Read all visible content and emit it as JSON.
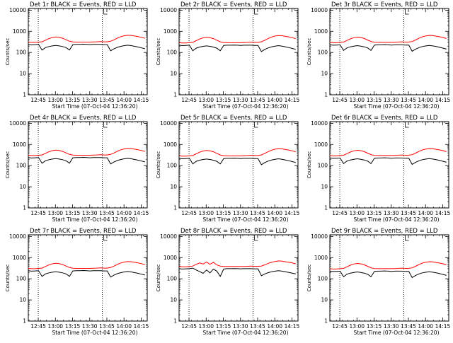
{
  "colors": {
    "events": "#000000",
    "lld": "#ff0000",
    "background": "#ffffff"
  },
  "shared": {
    "xlabel": "Start Time (07-Oct-04 12:36:20)",
    "ylabel": "Counts/sec",
    "xtick_labels": [
      "12:45",
      "13:00",
      "13:15",
      "13:30",
      "13:45",
      "14:00",
      "14:15"
    ],
    "ytick_labels": [
      "1",
      "10",
      "100",
      "1000",
      "10000"
    ],
    "xlim_min": [
      0,
      104
    ],
    "ylim": [
      1,
      12000
    ],
    "y_scale": "log"
  },
  "chart_data": [
    {
      "type": "line",
      "title": "Det 1r BLACK = Events, RED = LLD",
      "x": [
        0,
        3,
        6,
        9,
        12,
        15,
        18,
        21,
        24,
        27,
        30,
        33,
        36,
        39,
        42,
        45,
        48,
        51,
        54,
        57,
        60,
        63,
        66,
        69,
        72,
        75,
        78,
        81,
        84,
        87,
        90,
        93,
        96,
        99,
        102
      ],
      "series": [
        {
          "color": "black",
          "values": [
            240,
            230,
            235,
            240,
            130,
            170,
            190,
            205,
            215,
            205,
            190,
            170,
            130,
            235,
            240,
            240,
            245,
            240,
            235,
            240,
            240,
            240,
            235,
            235,
            120,
            150,
            175,
            195,
            210,
            220,
            210,
            195,
            180,
            165,
            150
          ]
        },
        {
          "color": "red",
          "values": [
            310,
            300,
            300,
            310,
            320,
            380,
            450,
            510,
            540,
            520,
            470,
            400,
            340,
            315,
            310,
            310,
            310,
            310,
            310,
            315,
            320,
            330,
            320,
            320,
            340,
            400,
            480,
            560,
            620,
            650,
            640,
            600,
            560,
            520,
            470
          ]
        }
      ],
      "vlines_minutes": [
        8.7,
        64.7
      ],
      "marker_minutes": 66
    },
    {
      "type": "line",
      "title": "Det 2r BLACK = Events, RED = LLD",
      "x": [
        0,
        3,
        6,
        9,
        12,
        15,
        18,
        21,
        24,
        27,
        30,
        33,
        36,
        39,
        42,
        45,
        48,
        51,
        54,
        57,
        60,
        63,
        66,
        69,
        72,
        75,
        78,
        81,
        84,
        87,
        90,
        93,
        96,
        99,
        102
      ],
      "series": [
        {
          "color": "black",
          "values": [
            220,
            210,
            215,
            220,
            120,
            160,
            180,
            195,
            205,
            195,
            180,
            160,
            120,
            215,
            220,
            220,
            225,
            220,
            215,
            220,
            220,
            220,
            215,
            215,
            110,
            140,
            165,
            185,
            200,
            210,
            200,
            185,
            170,
            155,
            140
          ]
        },
        {
          "color": "red",
          "values": [
            290,
            280,
            280,
            290,
            300,
            360,
            430,
            490,
            520,
            500,
            450,
            380,
            320,
            295,
            290,
            290,
            290,
            290,
            290,
            295,
            300,
            310,
            300,
            300,
            320,
            380,
            460,
            540,
            600,
            630,
            620,
            580,
            540,
            500,
            450
          ]
        }
      ],
      "vlines_minutes": [
        8.7,
        64.7
      ],
      "marker_minutes": 66
    },
    {
      "type": "line",
      "title": "Det 3r BLACK = Events, RED = LLD",
      "x": [
        0,
        3,
        6,
        9,
        12,
        15,
        18,
        21,
        24,
        27,
        30,
        33,
        36,
        39,
        42,
        45,
        48,
        51,
        54,
        57,
        60,
        63,
        66,
        69,
        72,
        75,
        78,
        81,
        84,
        87,
        90,
        93,
        96,
        99,
        102
      ],
      "series": [
        {
          "color": "black",
          "values": [
            230,
            220,
            225,
            230,
            125,
            165,
            185,
            200,
            210,
            200,
            185,
            165,
            125,
            225,
            230,
            230,
            235,
            230,
            225,
            230,
            230,
            230,
            225,
            225,
            115,
            145,
            170,
            190,
            205,
            215,
            205,
            190,
            175,
            160,
            145
          ]
        },
        {
          "color": "red",
          "values": [
            300,
            290,
            290,
            300,
            310,
            370,
            440,
            500,
            530,
            510,
            460,
            390,
            330,
            305,
            300,
            300,
            300,
            300,
            300,
            305,
            310,
            320,
            310,
            310,
            330,
            390,
            470,
            550,
            610,
            640,
            630,
            590,
            550,
            510,
            460
          ]
        }
      ],
      "vlines_minutes": [
        8.7,
        64.7
      ],
      "marker_minutes": 66
    },
    {
      "type": "line",
      "title": "Det 4r BLACK = Events, RED = LLD",
      "x": [
        0,
        3,
        6,
        9,
        12,
        15,
        18,
        21,
        24,
        27,
        30,
        33,
        36,
        39,
        42,
        45,
        48,
        51,
        54,
        57,
        60,
        63,
        66,
        69,
        72,
        75,
        78,
        81,
        84,
        87,
        90,
        93,
        96,
        99,
        102
      ],
      "series": [
        {
          "color": "black",
          "values": [
            240,
            230,
            235,
            240,
            130,
            170,
            190,
            205,
            215,
            205,
            190,
            170,
            130,
            235,
            240,
            240,
            245,
            240,
            235,
            240,
            240,
            240,
            235,
            235,
            120,
            150,
            175,
            195,
            210,
            220,
            210,
            195,
            180,
            165,
            150
          ]
        },
        {
          "color": "red",
          "values": [
            310,
            300,
            300,
            310,
            320,
            380,
            450,
            510,
            540,
            520,
            470,
            400,
            340,
            315,
            310,
            310,
            310,
            310,
            310,
            315,
            320,
            330,
            320,
            320,
            340,
            400,
            480,
            560,
            620,
            650,
            640,
            600,
            560,
            520,
            470
          ]
        }
      ],
      "vlines_minutes": [
        8.7,
        64.7
      ],
      "marker_minutes": 66
    },
    {
      "type": "line",
      "title": "Det 5r BLACK = Events, RED = LLD",
      "x": [
        0,
        3,
        6,
        9,
        12,
        15,
        18,
        21,
        24,
        27,
        30,
        33,
        36,
        39,
        42,
        45,
        48,
        51,
        54,
        57,
        60,
        63,
        66,
        69,
        72,
        75,
        78,
        81,
        84,
        87,
        90,
        93,
        96,
        99,
        102
      ],
      "series": [
        {
          "color": "black",
          "values": [
            220,
            210,
            215,
            220,
            120,
            160,
            180,
            195,
            205,
            195,
            180,
            160,
            120,
            215,
            220,
            220,
            225,
            220,
            215,
            220,
            220,
            220,
            215,
            215,
            110,
            140,
            165,
            185,
            200,
            210,
            200,
            185,
            170,
            155,
            140
          ]
        },
        {
          "color": "red",
          "values": [
            290,
            280,
            280,
            290,
            300,
            360,
            430,
            490,
            520,
            500,
            450,
            380,
            320,
            295,
            290,
            290,
            290,
            290,
            290,
            295,
            300,
            310,
            300,
            300,
            320,
            380,
            460,
            540,
            600,
            630,
            620,
            580,
            540,
            500,
            450
          ]
        }
      ],
      "vlines_minutes": [
        8.7,
        64.7
      ],
      "marker_minutes": 66
    },
    {
      "type": "line",
      "title": "Det 6r BLACK = Events, RED = LLD",
      "x": [
        0,
        3,
        6,
        9,
        12,
        15,
        18,
        21,
        24,
        27,
        30,
        33,
        36,
        39,
        42,
        45,
        48,
        51,
        54,
        57,
        60,
        63,
        66,
        69,
        72,
        75,
        78,
        81,
        84,
        87,
        90,
        93,
        96,
        99,
        102
      ],
      "series": [
        {
          "color": "black",
          "values": [
            230,
            220,
            225,
            230,
            125,
            165,
            185,
            200,
            210,
            200,
            185,
            165,
            125,
            225,
            230,
            230,
            235,
            230,
            225,
            230,
            230,
            230,
            225,
            225,
            115,
            145,
            170,
            190,
            205,
            215,
            205,
            190,
            175,
            160,
            145
          ]
        },
        {
          "color": "red",
          "values": [
            300,
            290,
            290,
            300,
            310,
            370,
            440,
            500,
            530,
            510,
            460,
            390,
            330,
            305,
            300,
            300,
            300,
            300,
            300,
            305,
            310,
            320,
            310,
            310,
            330,
            390,
            470,
            550,
            610,
            640,
            630,
            590,
            550,
            510,
            460
          ]
        }
      ],
      "vlines_minutes": [
        8.7,
        64.7
      ],
      "marker_minutes": 66
    },
    {
      "type": "line",
      "title": "Det 7r BLACK = Events, RED = LLD",
      "x": [
        0,
        3,
        6,
        9,
        12,
        15,
        18,
        21,
        24,
        27,
        30,
        33,
        36,
        39,
        42,
        45,
        48,
        51,
        54,
        57,
        60,
        63,
        66,
        69,
        72,
        75,
        78,
        81,
        84,
        87,
        90,
        93,
        96,
        99,
        102
      ],
      "series": [
        {
          "color": "black",
          "values": [
            240,
            230,
            235,
            240,
            130,
            170,
            190,
            205,
            215,
            205,
            190,
            170,
            130,
            235,
            240,
            240,
            245,
            240,
            235,
            240,
            240,
            240,
            235,
            235,
            120,
            150,
            175,
            195,
            210,
            220,
            210,
            195,
            180,
            165,
            150
          ]
        },
        {
          "color": "red",
          "values": [
            310,
            300,
            300,
            310,
            320,
            380,
            450,
            510,
            540,
            520,
            470,
            400,
            340,
            315,
            310,
            310,
            310,
            310,
            310,
            315,
            320,
            330,
            320,
            320,
            340,
            400,
            480,
            560,
            620,
            650,
            640,
            600,
            560,
            520,
            470
          ]
        }
      ],
      "vlines_minutes": [
        8.7,
        64.7
      ],
      "marker_minutes": 66
    },
    {
      "type": "line",
      "title": "Det 8r BLACK = Events, RED = LLD",
      "x": [
        0,
        3,
        6,
        9,
        12,
        15,
        18,
        21,
        24,
        27,
        30,
        33,
        36,
        39,
        42,
        45,
        48,
        51,
        54,
        57,
        60,
        63,
        66,
        69,
        72,
        75,
        78,
        81,
        84,
        87,
        90,
        93,
        96,
        99,
        102
      ],
      "series": [
        {
          "color": "black",
          "values": [
            300,
            290,
            295,
            300,
            320,
            260,
            220,
            180,
            260,
            190,
            290,
            230,
            130,
            290,
            300,
            300,
            305,
            300,
            295,
            300,
            300,
            300,
            295,
            295,
            140,
            170,
            195,
            215,
            230,
            240,
            230,
            215,
            200,
            185,
            170
          ]
        },
        {
          "color": "red",
          "values": [
            380,
            370,
            370,
            380,
            400,
            480,
            560,
            500,
            620,
            480,
            600,
            450,
            400,
            385,
            380,
            380,
            380,
            380,
            380,
            385,
            390,
            400,
            390,
            390,
            400,
            460,
            540,
            600,
            660,
            700,
            680,
            640,
            600,
            560,
            510
          ]
        }
      ],
      "vlines_minutes": [
        8.7,
        64.7
      ],
      "marker_minutes": 66
    },
    {
      "type": "line",
      "title": "Det 9r BLACK = Events, RED = LLD",
      "x": [
        0,
        3,
        6,
        9,
        12,
        15,
        18,
        21,
        24,
        27,
        30,
        33,
        36,
        39,
        42,
        45,
        48,
        51,
        54,
        57,
        60,
        63,
        66,
        69,
        72,
        75,
        78,
        81,
        84,
        87,
        90,
        93,
        96,
        99,
        102
      ],
      "series": [
        {
          "color": "black",
          "values": [
            230,
            220,
            225,
            230,
            125,
            165,
            185,
            200,
            210,
            200,
            185,
            165,
            125,
            225,
            230,
            230,
            235,
            230,
            225,
            230,
            230,
            230,
            225,
            225,
            115,
            145,
            170,
            190,
            205,
            215,
            205,
            190,
            175,
            160,
            145
          ]
        },
        {
          "color": "red",
          "values": [
            300,
            290,
            290,
            300,
            310,
            370,
            440,
            500,
            530,
            510,
            460,
            390,
            330,
            305,
            300,
            300,
            300,
            300,
            300,
            305,
            310,
            320,
            310,
            310,
            330,
            390,
            470,
            550,
            610,
            640,
            630,
            590,
            550,
            510,
            460
          ]
        }
      ],
      "vlines_minutes": [
        8.7,
        64.7
      ],
      "marker_minutes": 66
    }
  ]
}
